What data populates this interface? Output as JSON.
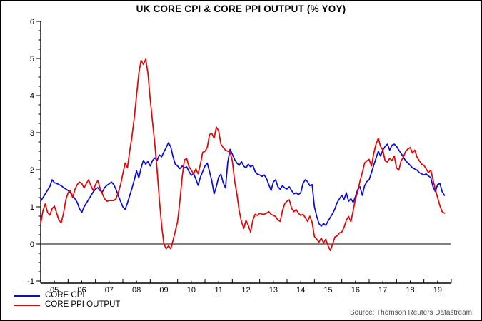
{
  "title": "UK CORE CPI & CORE PPI OUTPUT (% YOY)",
  "source": "Source: Thomson Reuters Datastream",
  "legend": [
    {
      "label": "CORE CPI",
      "color": "#0a0ad6"
    },
    {
      "label": "CORE PPI OUTPUT",
      "color": "#e30505"
    }
  ],
  "colors": {
    "axis": "#000000",
    "source_text": "#4d4d4d",
    "background": "#ffffff"
  },
  "chart_data": {
    "type": "line",
    "title": "UK CORE CPI & CORE PPI OUTPUT (% YOY)",
    "xlabel": "",
    "ylabel": "",
    "grid": false,
    "zero_line": true,
    "legend_position": "bottom-left",
    "x_axis": {
      "start_year": 2005,
      "end_year": 2020,
      "tick_labels": [
        "05",
        "06",
        "07",
        "08",
        "09",
        "10",
        "11",
        "12",
        "13",
        "14",
        "15",
        "16",
        "17",
        "18",
        "19"
      ]
    },
    "y_axis": {
      "min": -1,
      "max": 6,
      "tick_step": 1,
      "minor_tick_step": 0.25,
      "tick_labels": [
        "-1",
        "0",
        "1",
        "2",
        "3",
        "4",
        "5",
        "6"
      ]
    },
    "sample_interval_years": 0.083333,
    "series": [
      {
        "name": "CORE CPI",
        "color": "#0a0ad6",
        "start_year": 2005.0,
        "values": [
          1.15,
          1.25,
          1.35,
          1.45,
          1.55,
          1.73,
          1.65,
          1.63,
          1.6,
          1.57,
          1.52,
          1.48,
          1.44,
          1.38,
          1.3,
          1.22,
          1.12,
          0.95,
          0.85,
          1.0,
          1.1,
          1.2,
          1.3,
          1.4,
          1.48,
          1.52,
          1.44,
          1.4,
          1.52,
          1.58,
          1.62,
          1.67,
          1.6,
          1.47,
          1.3,
          1.15,
          1.0,
          0.93,
          1.1,
          1.3,
          1.5,
          1.72,
          1.97,
          1.78,
          2.05,
          2.25,
          2.15,
          2.22,
          2.1,
          2.25,
          2.32,
          2.25,
          2.4,
          2.35,
          2.48,
          2.6,
          2.73,
          2.62,
          2.35,
          2.15,
          2.1,
          2.03,
          2.1,
          2.05,
          2.08,
          1.95,
          1.85,
          1.9,
          1.75,
          1.58,
          1.8,
          1.95,
          2.1,
          2.18,
          1.95,
          1.7,
          1.35,
          1.55,
          1.8,
          1.88,
          1.65,
          1.51,
          2.2,
          2.55,
          2.42,
          2.28,
          2.18,
          2.12,
          2.22,
          2.1,
          2.05,
          2.15,
          2.08,
          2.12,
          1.95,
          1.88,
          1.86,
          1.82,
          1.86,
          1.76,
          1.6,
          1.44,
          1.67,
          1.73,
          1.54,
          1.47,
          1.57,
          1.51,
          1.48,
          1.54,
          1.44,
          1.35,
          1.38,
          1.33,
          1.38,
          1.63,
          1.73,
          1.68,
          1.57,
          1.6,
          1.0,
          0.75,
          0.55,
          0.48,
          0.55,
          0.5,
          0.62,
          0.72,
          0.82,
          0.95,
          1.12,
          1.22,
          1.31,
          1.2,
          1.38,
          1.15,
          1.22,
          1.12,
          1.28,
          1.47,
          1.54,
          1.31,
          1.57,
          1.68,
          1.73,
          1.92,
          2.12,
          2.31,
          2.5,
          2.37,
          2.53,
          2.63,
          2.69,
          2.53,
          2.66,
          2.69,
          2.63,
          2.53,
          2.44,
          2.34,
          2.24,
          2.18,
          2.12,
          2.05,
          2.02,
          1.99,
          1.92,
          1.89,
          1.86,
          1.89,
          1.83,
          1.79,
          1.54,
          1.41,
          1.6,
          1.63,
          1.41,
          1.31
        ]
      },
      {
        "name": "CORE PPI OUTPUT",
        "color": "#e30505",
        "start_year": 2005.0,
        "values": [
          0.55,
          0.9,
          1.08,
          0.85,
          0.78,
          0.95,
          1.02,
          0.83,
          0.64,
          0.57,
          0.83,
          1.19,
          1.38,
          1.44,
          1.25,
          1.47,
          1.6,
          1.67,
          1.63,
          1.51,
          1.63,
          1.73,
          1.57,
          1.44,
          1.6,
          1.71,
          1.51,
          1.35,
          1.22,
          1.15,
          1.17,
          1.17,
          1.17,
          1.22,
          1.38,
          1.6,
          1.89,
          2.18,
          2.05,
          2.5,
          2.9,
          3.4,
          4.0,
          4.6,
          4.95,
          4.84,
          4.98,
          4.6,
          3.9,
          3.3,
          2.7,
          2.0,
          1.2,
          0.5,
          0.0,
          -0.13,
          -0.05,
          -0.13,
          0.1,
          0.35,
          0.61,
          1.15,
          1.8,
          2.27,
          2.3,
          2.08,
          1.99,
          1.89,
          2.02,
          1.89,
          2.15,
          2.47,
          2.5,
          2.6,
          2.95,
          2.98,
          2.85,
          3.15,
          3.05,
          2.69,
          2.6,
          2.53,
          2.5,
          2.48,
          2.24,
          1.7,
          1.35,
          0.9,
          0.6,
          0.42,
          0.64,
          0.5,
          0.32,
          0.64,
          0.8,
          0.77,
          0.83,
          0.8,
          0.8,
          0.83,
          0.87,
          0.8,
          0.77,
          0.74,
          0.64,
          0.61,
          0.9,
          1.09,
          1.15,
          1.19,
          0.96,
          0.87,
          0.93,
          0.83,
          0.77,
          0.8,
          0.71,
          0.61,
          0.75,
          0.58,
          0.2,
          0.13,
          0.05,
          0.16,
          0.03,
          0.13,
          -0.05,
          -0.18,
          0.0,
          0.19,
          0.22,
          0.3,
          0.32,
          0.45,
          0.64,
          0.74,
          0.6,
          0.9,
          1.22,
          1.41,
          1.7,
          1.92,
          2.18,
          2.24,
          2.28,
          2.1,
          2.44,
          2.69,
          2.85,
          2.63,
          2.53,
          2.24,
          2.21,
          2.31,
          2.25,
          2.37,
          2.05,
          1.99,
          2.24,
          2.34,
          2.5,
          2.56,
          2.6,
          2.45,
          2.53,
          2.34,
          2.24,
          2.15,
          2.12,
          2.02,
          1.92,
          1.99,
          1.73,
          1.47,
          1.25,
          1.03,
          0.87,
          0.83
        ]
      }
    ]
  }
}
